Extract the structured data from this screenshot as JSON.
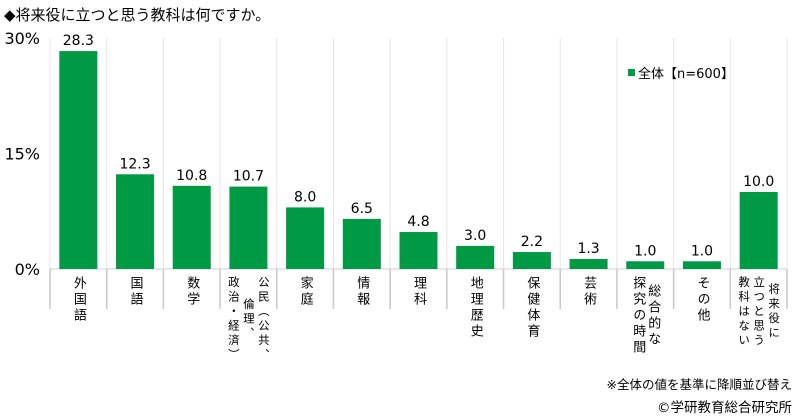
{
  "title": "◆将来役に立つと思う教科は何ですか。",
  "note": "※全体の値を基準に降順並び替え",
  "copyright": "©学研教育総合研究所",
  "chart_data": {
    "type": "bar",
    "title": "◆将来役に立つと思う教科は何ですか。",
    "categories": [
      "外国語",
      "国語",
      "数学",
      "公民（公共、倫理、政治・経済）",
      "家庭",
      "情報",
      "理科",
      "地理歴史",
      "保健体育",
      "芸術",
      "総合的な探究の時間",
      "その他",
      "将来役に立つと思う教科はない"
    ],
    "category_lines": [
      [
        "外国語"
      ],
      [
        "国語"
      ],
      [
        "数学"
      ],
      [
        "公民（公共、",
        "倫理、",
        "政治・経済）"
      ],
      [
        "家庭"
      ],
      [
        "情報"
      ],
      [
        "理科"
      ],
      [
        "地理歴史"
      ],
      [
        "保健体育"
      ],
      [
        "芸術"
      ],
      [
        "総合的な",
        "探究の時間"
      ],
      [
        "その他"
      ],
      [
        "将来役に",
        "立つと思う",
        "教科はない"
      ]
    ],
    "series": [
      {
        "name": "全体【n=600】",
        "values": [
          28.3,
          12.3,
          10.8,
          10.7,
          8.0,
          6.5,
          4.8,
          3.0,
          2.2,
          1.3,
          1.0,
          1.0,
          10.0
        ],
        "color": "#009944"
      }
    ],
    "value_labels": [
      "28.3",
      "12.3",
      "10.8",
      "10.7",
      "8.0",
      "6.5",
      "4.8",
      "3.0",
      "2.2",
      "1.3",
      "1.0",
      "1.0",
      "10.0"
    ],
    "ylim": [
      0,
      30
    ],
    "yticks": [
      0,
      15,
      30
    ],
    "ytick_labels": [
      "0%",
      "15%",
      "30%"
    ],
    "grid": "vertical category separators",
    "legend_position": "top-right"
  }
}
